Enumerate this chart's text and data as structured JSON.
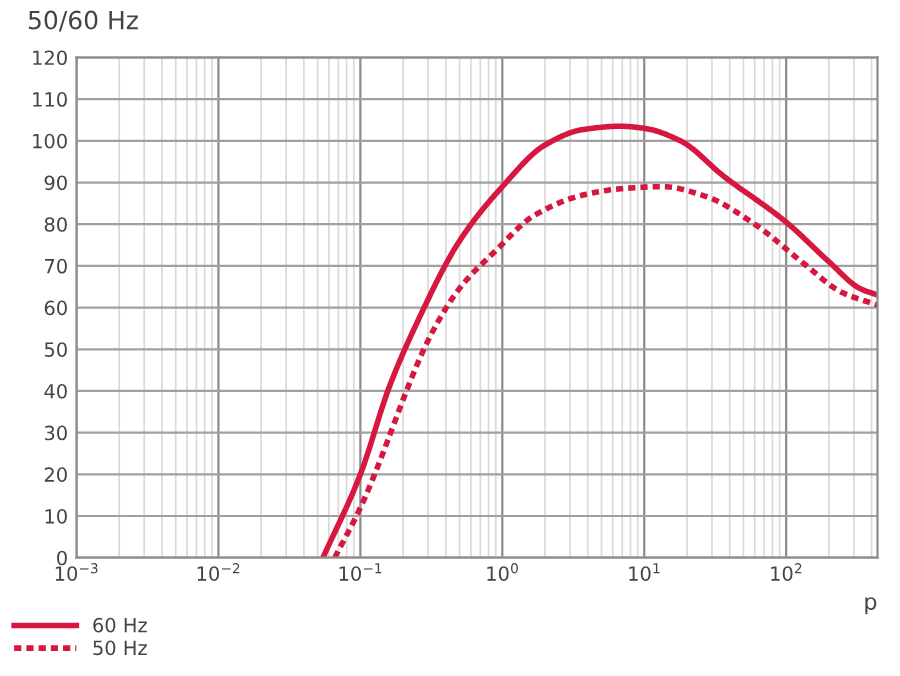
{
  "chart_data": {
    "type": "line",
    "title": "50/60 Hz",
    "xlabel": "p",
    "log": "x",
    "grid": true,
    "legend": "bottom left",
    "marker": "none",
    "xlim": [
      0.001,
      440
    ],
    "ylim": [
      0,
      120
    ],
    "xticks": [
      {
        "value": 0.001,
        "label": "10$^{−3}$"
      },
      {
        "value": 0.01,
        "label": "10$^{−2}$"
      },
      {
        "value": 0.1,
        "label": "10$^{−1}$"
      },
      {
        "value": 1,
        "label": "10$^{0}$"
      },
      {
        "value": 10,
        "label": "10$^{1}$"
      },
      {
        "value": 100,
        "label": "10$^{2}$"
      }
    ],
    "yticks": [
      0,
      10,
      20,
      30,
      40,
      50,
      60,
      70,
      80,
      90,
      100,
      110,
      120
    ],
    "series": [
      {
        "name": "60 Hz",
        "color": "#d6173f",
        "line_style": "solid",
        "x": [
          0.0545,
          0.1,
          0.16,
          0.24,
          0.5,
          1.0,
          2.0,
          3.7,
          6.8,
          10,
          18,
          36,
          100,
          200,
          330,
          440
        ],
        "values": [
          0,
          20,
          41,
          55,
          76,
          89,
          99,
          102.7,
          103.5,
          103,
          100,
          91.6,
          80.5,
          71,
          64.6,
          63
        ]
      },
      {
        "name": "50 Hz",
        "color": "#d6173f",
        "line_style": "dotted",
        "x": [
          0.066,
          0.1,
          0.32,
          0.5,
          0.92,
          1.66,
          3.7,
          6.8,
          13.5,
          27,
          60,
          135,
          245,
          440
        ],
        "values": [
          0,
          12,
          54,
          64.6,
          74,
          82,
          87,
          88.5,
          89,
          86.7,
          80,
          70.4,
          63.7,
          60.6
        ]
      }
    ]
  }
}
